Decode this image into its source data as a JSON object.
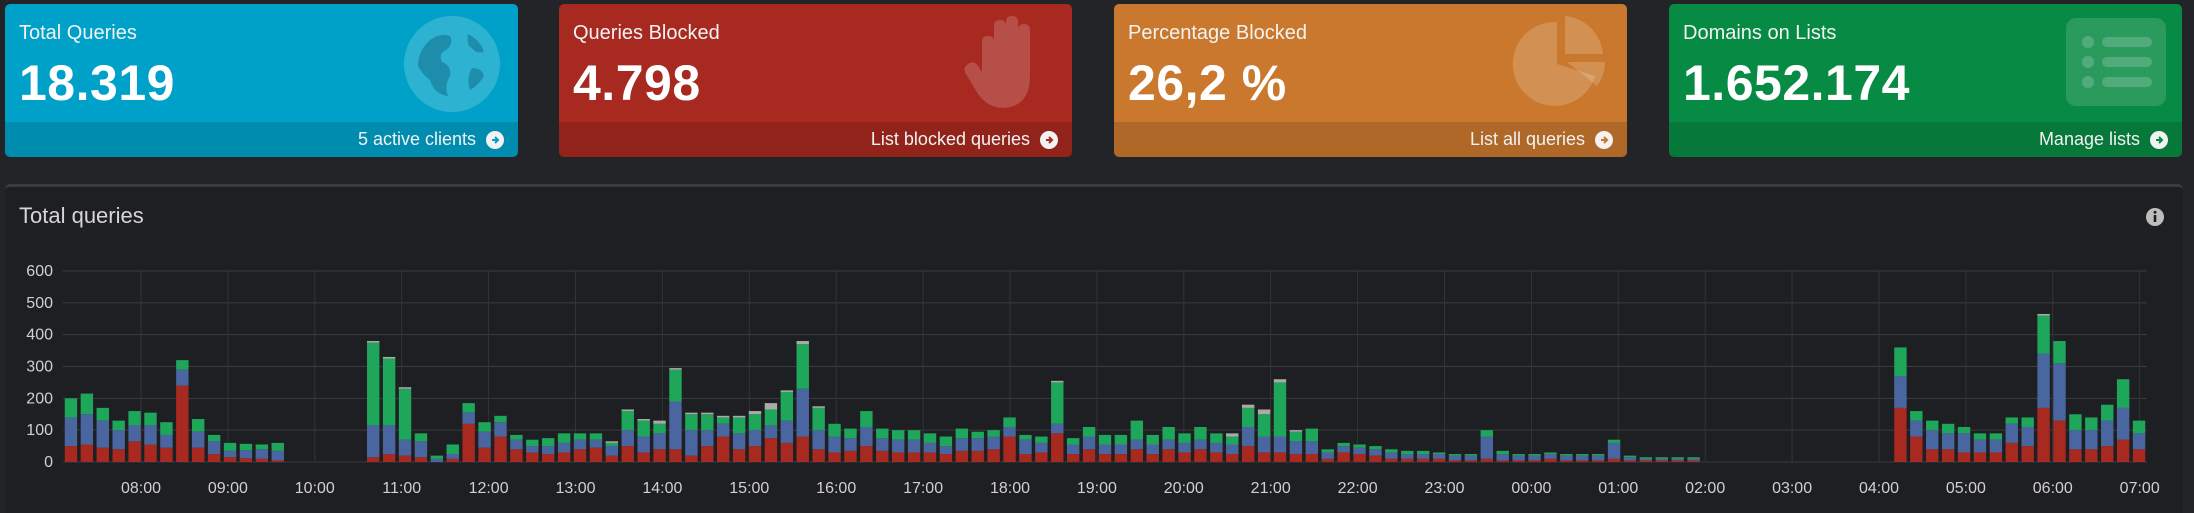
{
  "cards": [
    {
      "label": "Total Queries",
      "value": "18.319",
      "footer": "5 active clients",
      "icon": "globe-icon",
      "color": "#00a1c9"
    },
    {
      "label": "Queries Blocked",
      "value": "4.798",
      "footer": "List blocked queries",
      "icon": "hand-icon",
      "color": "#a7291f"
    },
    {
      "label": "Percentage Blocked",
      "value": "26,2 %",
      "footer": "List all queries",
      "icon": "pie-chart-icon",
      "color": "#c9782d"
    },
    {
      "label": "Domains on Lists",
      "value": "1.652.174",
      "footer": "Manage lists",
      "icon": "list-icon",
      "color": "#078a43"
    }
  ],
  "panel": {
    "title": "Total queries"
  },
  "chart_data": {
    "type": "bar",
    "stacked": true,
    "ylim": [
      0,
      600
    ],
    "yticks": [
      0,
      100,
      200,
      300,
      400,
      500,
      600
    ],
    "xticks": [
      "08:00",
      "09:00",
      "10:00",
      "11:00",
      "12:00",
      "13:00",
      "14:00",
      "15:00",
      "16:00",
      "17:00",
      "18:00",
      "19:00",
      "20:00",
      "21:00",
      "22:00",
      "23:00",
      "00:00",
      "01:00",
      "02:00",
      "03:00",
      "04:00",
      "05:00",
      "06:00",
      "07:00"
    ],
    "grid": true,
    "series": [
      {
        "color": "#a7291f",
        "values": [
          50,
          55,
          45,
          40,
          65,
          55,
          45,
          240,
          45,
          25,
          15,
          12,
          10,
          5,
          0,
          0,
          0,
          0,
          0,
          15,
          25,
          20,
          15,
          0,
          10,
          120,
          45,
          80,
          40,
          30,
          25,
          30,
          40,
          45,
          20,
          50,
          30,
          40,
          40,
          20,
          50,
          80,
          40,
          50,
          75,
          60,
          80,
          40,
          30,
          35,
          50,
          35,
          30,
          30,
          30,
          25,
          35,
          35,
          40,
          80,
          25,
          30,
          90,
          25,
          40,
          25,
          25,
          40,
          25,
          40,
          30,
          40,
          30,
          25,
          50,
          30,
          30,
          25,
          25,
          10,
          30,
          25,
          20,
          10,
          10,
          10,
          10,
          5,
          5,
          10,
          5,
          5,
          5,
          10,
          5,
          5,
          5,
          10,
          5,
          5,
          5,
          5,
          5,
          0,
          0,
          0,
          0,
          0,
          0,
          0,
          0,
          0,
          0,
          0,
          0,
          170,
          80,
          40,
          40,
          30,
          30,
          30,
          60,
          50,
          170,
          130,
          40,
          40,
          50,
          70,
          40
        ]
      },
      {
        "color": "#4a66a0",
        "values": [
          90,
          95,
          85,
          60,
          50,
          60,
          40,
          50,
          50,
          40,
          20,
          25,
          30,
          30,
          0,
          0,
          0,
          0,
          0,
          100,
          90,
          50,
          50,
          10,
          15,
          35,
          50,
          45,
          30,
          20,
          25,
          30,
          30,
          25,
          30,
          50,
          50,
          50,
          150,
          80,
          50,
          40,
          50,
          50,
          40,
          70,
          150,
          60,
          50,
          40,
          60,
          40,
          40,
          40,
          30,
          25,
          40,
          40,
          40,
          30,
          45,
          30,
          30,
          30,
          40,
          30,
          30,
          30,
          30,
          30,
          30,
          30,
          30,
          30,
          60,
          50,
          50,
          40,
          40,
          20,
          20,
          20,
          20,
          20,
          15,
          15,
          15,
          15,
          15,
          70,
          20,
          15,
          15,
          15,
          15,
          15,
          15,
          50,
          10,
          5,
          5,
          5,
          5,
          0,
          0,
          0,
          0,
          0,
          0,
          0,
          0,
          0,
          0,
          0,
          0,
          100,
          50,
          60,
          50,
          60,
          40,
          40,
          60,
          60,
          170,
          180,
          60,
          60,
          80,
          100,
          50
        ]
      },
      {
        "color": "#1ea65b",
        "values": [
          60,
          65,
          40,
          30,
          45,
          40,
          40,
          30,
          40,
          20,
          25,
          20,
          15,
          25,
          0,
          0,
          0,
          0,
          0,
          260,
          210,
          160,
          25,
          10,
          30,
          30,
          30,
          20,
          15,
          20,
          25,
          30,
          20,
          20,
          10,
          60,
          50,
          30,
          100,
          50,
          50,
          20,
          50,
          50,
          50,
          90,
          140,
          70,
          40,
          30,
          50,
          30,
          30,
          30,
          30,
          30,
          30,
          20,
          20,
          30,
          15,
          20,
          130,
          20,
          30,
          30,
          30,
          60,
          30,
          40,
          30,
          40,
          30,
          25,
          60,
          70,
          170,
          30,
          40,
          10,
          10,
          10,
          10,
          10,
          10,
          10,
          5,
          5,
          5,
          20,
          10,
          5,
          5,
          5,
          5,
          5,
          5,
          10,
          5,
          5,
          5,
          5,
          5,
          0,
          0,
          0,
          0,
          0,
          0,
          0,
          0,
          0,
          0,
          0,
          0,
          90,
          30,
          30,
          30,
          20,
          20,
          20,
          20,
          30,
          120,
          70,
          50,
          40,
          50,
          90,
          40
        ]
      },
      {
        "color": "#aaaaaa",
        "values": [
          0,
          0,
          0,
          0,
          0,
          0,
          0,
          0,
          0,
          0,
          0,
          0,
          0,
          0,
          0,
          0,
          0,
          0,
          0,
          5,
          5,
          5,
          0,
          0,
          0,
          0,
          0,
          0,
          0,
          0,
          0,
          0,
          0,
          0,
          5,
          5,
          5,
          10,
          5,
          5,
          5,
          5,
          5,
          10,
          20,
          5,
          10,
          5,
          0,
          0,
          0,
          0,
          0,
          0,
          0,
          0,
          0,
          0,
          0,
          0,
          0,
          0,
          5,
          0,
          0,
          0,
          0,
          0,
          0,
          0,
          0,
          0,
          0,
          10,
          10,
          15,
          10,
          5,
          0,
          0,
          0,
          0,
          0,
          0,
          0,
          0,
          0,
          0,
          0,
          0,
          0,
          0,
          0,
          0,
          0,
          0,
          0,
          0,
          0,
          0,
          0,
          0,
          0,
          0,
          0,
          0,
          0,
          0,
          0,
          0,
          0,
          0,
          0,
          0,
          0,
          0,
          0,
          0,
          0,
          0,
          0,
          0,
          0,
          0,
          5,
          0,
          0,
          0,
          0,
          0,
          0
        ]
      }
    ]
  }
}
